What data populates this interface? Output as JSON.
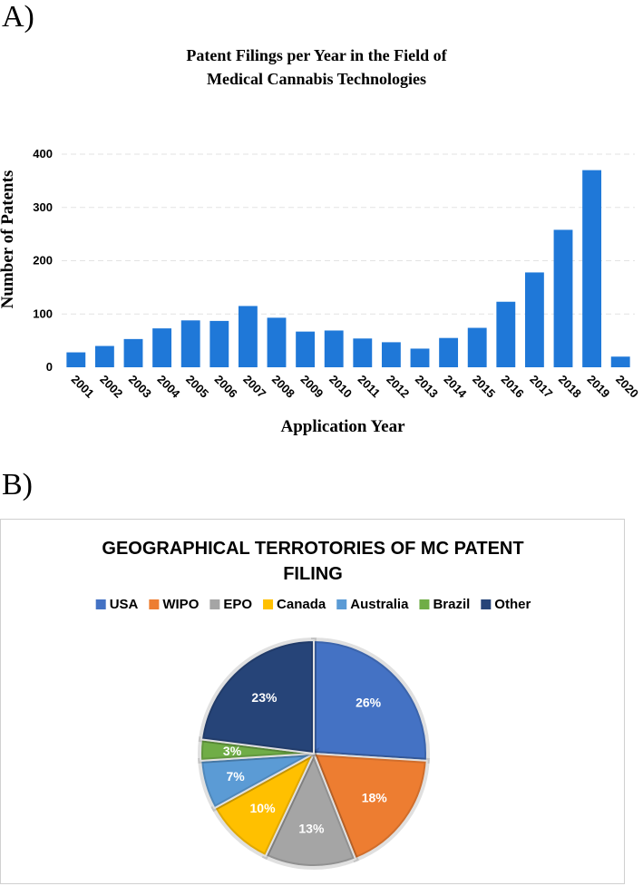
{
  "panels": {
    "a_label": "A)",
    "b_label": "B)"
  },
  "chart_data": [
    {
      "type": "bar",
      "title_lines": [
        "Patent Filings per Year in the Field of",
        "Medical Cannabis Technologies"
      ],
      "xlabel": "Application Year",
      "ylabel": "Number of Patents",
      "categories": [
        "2001",
        "2002",
        "2003",
        "2004",
        "2005",
        "2006",
        "2007",
        "2008",
        "2009",
        "2010",
        "2011",
        "2012",
        "2013",
        "2014",
        "2015",
        "2016",
        "2017",
        "2018",
        "2019",
        "2020"
      ],
      "values": [
        28,
        40,
        53,
        73,
        88,
        87,
        115,
        93,
        67,
        69,
        54,
        47,
        35,
        55,
        74,
        123,
        178,
        258,
        370,
        20
      ],
      "yticks": [
        0,
        100,
        200,
        300,
        400
      ],
      "ylim": [
        0,
        400
      ],
      "grid": true,
      "bar_color": "#1f78d8"
    },
    {
      "type": "pie",
      "title_lines": [
        "GEOGRAPHICAL TERROTORIES OF MC PATENT",
        "FILING"
      ],
      "legend_position": "top",
      "slices": [
        {
          "label": "USA",
          "value": 26,
          "pct_label": "26%",
          "color": "#4472c4"
        },
        {
          "label": "WIPO",
          "value": 18,
          "pct_label": "18%",
          "color": "#ed7d31"
        },
        {
          "label": "EPO",
          "value": 13,
          "pct_label": "13%",
          "color": "#a5a5a5"
        },
        {
          "label": "Canada",
          "value": 10,
          "pct_label": "10%",
          "color": "#ffc000"
        },
        {
          "label": "Australia",
          "value": 7,
          "pct_label": "7%",
          "color": "#5b9bd5"
        },
        {
          "label": "Brazil",
          "value": 3,
          "pct_label": "3%",
          "color": "#70ad47"
        },
        {
          "label": "Other",
          "value": 23,
          "pct_label": "23%",
          "color": "#264478"
        }
      ]
    }
  ]
}
